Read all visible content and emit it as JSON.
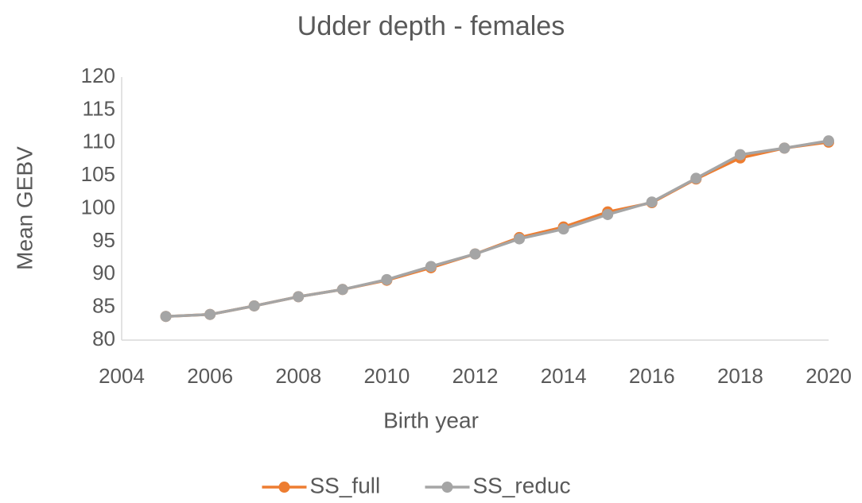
{
  "chart_data": {
    "type": "line",
    "title": "Udder depth - females",
    "x_label": "Birth year",
    "y_label": "Mean GEBV",
    "x": [
      2005,
      2006,
      2007,
      2008,
      2009,
      2010,
      2011,
      2012,
      2013,
      2014,
      2015,
      2016,
      2017,
      2018,
      2019,
      2020
    ],
    "series": [
      {
        "name": "SS_full",
        "color": "#ed7d31",
        "values": [
          83.6,
          83.9,
          85.2,
          86.6,
          87.7,
          89.1,
          91.0,
          93.1,
          95.6,
          97.2,
          99.5,
          100.9,
          104.5,
          107.7,
          109.2,
          110.1
        ]
      },
      {
        "name": "SS_reduc",
        "color": "#a5a5a5",
        "values": [
          83.6,
          83.9,
          85.2,
          86.6,
          87.7,
          89.2,
          91.2,
          93.1,
          95.4,
          96.9,
          99.1,
          101.0,
          104.6,
          108.2,
          109.2,
          110.3
        ]
      }
    ],
    "xlim": [
      2004,
      2020
    ],
    "xticks": [
      2004,
      2006,
      2008,
      2010,
      2012,
      2014,
      2016,
      2018,
      2020
    ],
    "ylim": [
      80,
      120
    ],
    "yticks": [
      80,
      85,
      90,
      95,
      100,
      105,
      110,
      115,
      120
    ],
    "grid": false,
    "legend": "bottom"
  }
}
